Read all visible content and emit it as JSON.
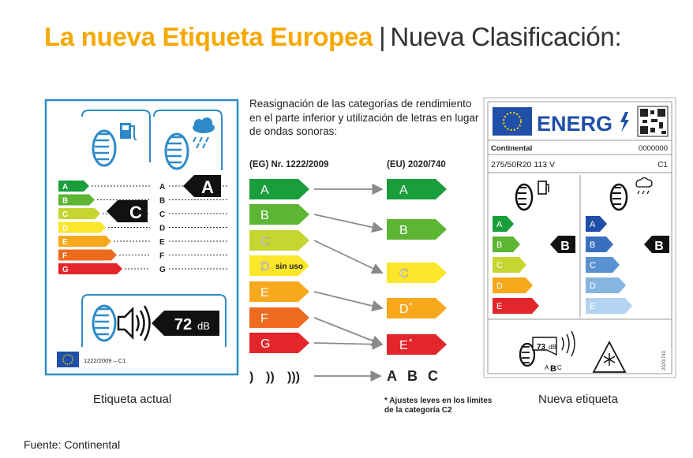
{
  "header": {
    "title_main": "La nueva Etiqueta Europea",
    "title_separator": "|",
    "title_sub": "Nueva Clasificación:"
  },
  "center": {
    "description": "Reasignación de las categorías de rendimiento en el parte inferior y utilización de letras en lugar de ondas sonoras:",
    "old_regulation": "(EG) Nr. 1222/2009",
    "new_regulation": "(EU) 2020/740",
    "old_classes": [
      "A",
      "B",
      "C",
      "D",
      "E",
      "F",
      "G"
    ],
    "unused_note": "sin uso",
    "new_classes": [
      "A",
      "B",
      "C",
      "D",
      "E"
    ],
    "asterisk": "*",
    "sound_waves_old": [
      ")",
      "))",
      ")))"
    ],
    "sound_classes_new": [
      "A",
      "B",
      "C"
    ],
    "footnote": "* Ajustes leves en los límites de la categoría C2",
    "colors": [
      "#1a9d3b",
      "#5db534",
      "#c7d530",
      "#fbe62b",
      "#f7a81c",
      "#ee6a1f",
      "#e3262b"
    ]
  },
  "old_label": {
    "classes": [
      "A",
      "B",
      "C",
      "D",
      "E",
      "F",
      "G"
    ],
    "fuel_rating": "C",
    "wet_rating": "A",
    "noise_value": "72",
    "noise_unit": "dB",
    "regulation": "1222/2009 – C1",
    "caption": "Etiqueta actual"
  },
  "new_label": {
    "energy_word": "ENERG",
    "brand": "Continental",
    "code": "0000000",
    "size": "275/50R20 113 V",
    "tyre_class": "C1",
    "classes": [
      "A",
      "B",
      "C",
      "D",
      "E"
    ],
    "fuel_rating": "B",
    "wet_rating": "B",
    "noise_value": "73",
    "noise_unit": "dB",
    "noise_classes": [
      "A",
      "B",
      "C"
    ],
    "side_code": "2020/740",
    "caption": "Nueva etiqueta"
  },
  "source": "Fuente: Continental"
}
